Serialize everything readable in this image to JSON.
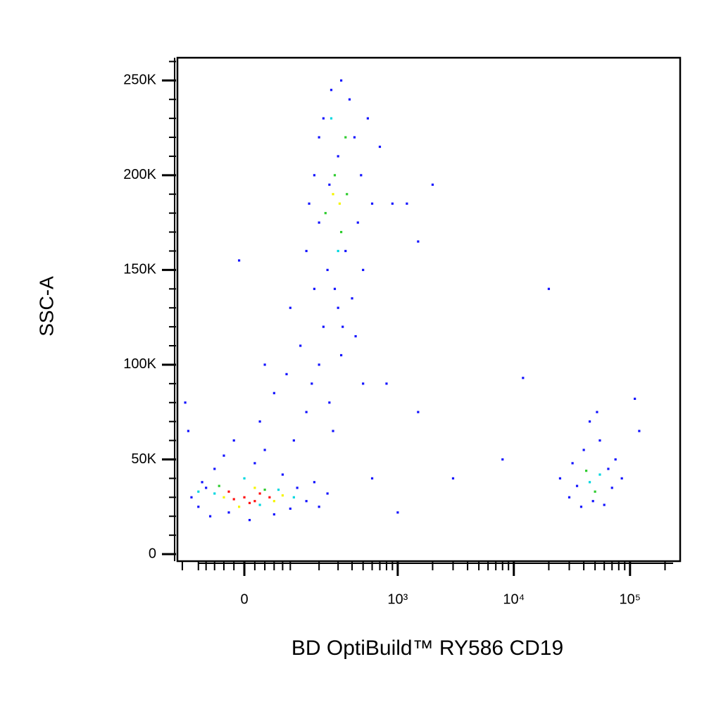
{
  "chart_data": {
    "type": "scatter",
    "xlabel": "BD OptiBuild™ RY586 CD19",
    "ylabel": "SSC-A",
    "xscale": "biexponential",
    "xlim": [
      -168,
      270000
    ],
    "ylim": [
      -3700,
      262000
    ],
    "xticks": [
      0,
      {
        "value": 1000,
        "label": "10³"
      },
      {
        "value": 10000,
        "label": "10⁴"
      },
      {
        "value": 100000,
        "label": "10⁵"
      }
    ],
    "xminor_ticks": [
      -150,
      -100,
      -80,
      -60,
      -40,
      -20,
      20,
      40,
      60,
      80,
      100,
      200,
      300,
      400,
      500,
      600,
      700,
      800,
      900,
      2000,
      3000,
      4000,
      5000,
      6000,
      7000,
      8000,
      9000,
      20000,
      30000,
      40000,
      50000,
      60000,
      70000,
      80000,
      90000,
      200000
    ],
    "yticks": [
      0,
      {
        "value": 50000,
        "label": "50K"
      },
      {
        "value": 100000,
        "label": "100K"
      },
      {
        "value": 150000,
        "label": "150K"
      },
      {
        "value": 200000,
        "label": "200K"
      },
      {
        "value": 250000,
        "label": "250K"
      }
    ],
    "yminor_ticks": [
      10000,
      20000,
      30000,
      40000,
      60000,
      70000,
      80000,
      90000,
      110000,
      120000,
      130000,
      140000,
      160000,
      170000,
      180000,
      190000,
      210000,
      220000,
      230000,
      240000,
      260000
    ],
    "series": [
      {
        "color": "#1414ff",
        "x": [
          -120,
          -100,
          -90,
          -70,
          -60,
          -40,
          -30,
          -20,
          10,
          20,
          40,
          60,
          80,
          100,
          120,
          150,
          180,
          200,
          240,
          -140,
          -130,
          -80,
          30,
          60,
          90,
          110,
          130,
          150,
          170,
          200,
          220,
          250,
          270,
          300,
          320,
          180,
          -10,
          100,
          40,
          150,
          180,
          200,
          220,
          240,
          260,
          280,
          300,
          320,
          350,
          380,
          400,
          420,
          450,
          480,
          500,
          550,
          600,
          700,
          900,
          1200,
          1500,
          250,
          330,
          430,
          200,
          160,
          500,
          800,
          1500,
          3000,
          8000,
          12000,
          20000,
          2000,
          600,
          1000,
          110000,
          120000,
          25000,
          30000,
          32000,
          38000,
          40000,
          45000,
          48000,
          55000,
          60000,
          65000,
          70000,
          75000,
          85000,
          35000,
          52000
        ],
        "y": [
          30000,
          25000,
          38000,
          20000,
          45000,
          52000,
          22000,
          60000,
          18000,
          48000,
          55000,
          21000,
          42000,
          24000,
          35000,
          28000,
          38000,
          25000,
          32000,
          80000,
          65000,
          35000,
          70000,
          85000,
          95000,
          60000,
          110000,
          75000,
          90000,
          100000,
          120000,
          80000,
          65000,
          130000,
          105000,
          140000,
          155000,
          130000,
          100000,
          160000,
          200000,
          175000,
          230000,
          150000,
          245000,
          140000,
          210000,
          250000,
          160000,
          240000,
          135000,
          220000,
          175000,
          200000,
          150000,
          230000,
          185000,
          215000,
          185000,
          185000,
          165000,
          195000,
          120000,
          115000,
          220000,
          185000,
          90000,
          90000,
          75000,
          40000,
          50000,
          93000,
          140000,
          195000,
          40000,
          22000,
          82000,
          65000,
          40000,
          30000,
          48000,
          25000,
          55000,
          70000,
          28000,
          60000,
          26000,
          45000,
          35000,
          50000,
          40000,
          36000,
          75000
        ]
      },
      {
        "color": "#00d8e0",
        "x": [
          -60,
          0,
          30,
          70,
          110,
          -100,
          300,
          260,
          45000,
          55000
        ],
        "y": [
          32000,
          40000,
          26000,
          34000,
          30000,
          33000,
          160000,
          230000,
          38000,
          42000
        ]
      },
      {
        "color": "#2ecc2e",
        "x": [
          230,
          280,
          320,
          350,
          360,
          50000,
          42000,
          -50,
          40
        ],
        "y": [
          180000,
          200000,
          170000,
          220000,
          190000,
          33000,
          44000,
          36000,
          34000
        ]
      },
      {
        "color": "#f5f500",
        "x": [
          -40,
          20,
          60,
          80,
          -10,
          270,
          310
        ],
        "y": [
          30000,
          35000,
          28000,
          31000,
          25000,
          190000,
          185000
        ]
      },
      {
        "color": "#ff1010",
        "x": [
          -20,
          0,
          10,
          30,
          -30,
          20,
          50
        ],
        "y": [
          29000,
          30000,
          27000,
          32000,
          33000,
          28000,
          30000
        ]
      }
    ]
  }
}
